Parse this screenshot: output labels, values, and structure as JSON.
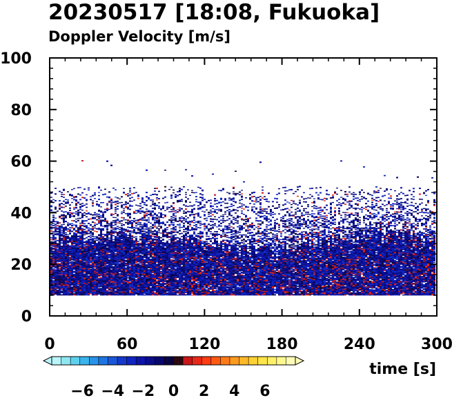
{
  "title": "20230517 [18:08, Fukuoka]",
  "subtitle": "Doppler Velocity [m/s]",
  "chart_data": {
    "type": "heatmap",
    "title": "20230517 [18:08, Fukuoka]",
    "subtitle": "Doppler Velocity [m/s]",
    "xlabel": "time [s]",
    "ylabel": "",
    "xlim": [
      0,
      300
    ],
    "ylim": [
      0,
      100
    ],
    "x_ticks": [
      0,
      60,
      120,
      180,
      240,
      300
    ],
    "x_tick_labels": [
      "0",
      "60",
      "120",
      "180",
      "240",
      "300"
    ],
    "y_ticks": [
      0,
      20,
      40,
      60,
      80,
      100
    ],
    "y_tick_labels": [
      "0",
      "20",
      "40",
      "60",
      "80",
      "100"
    ],
    "grid": false,
    "colorbar": {
      "orientation": "horizontal",
      "placement": "bottom-left",
      "range": [
        -8,
        8
      ],
      "tick_values": [
        -6,
        -4,
        -2,
        0,
        2,
        4,
        6
      ],
      "tick_labels": [
        "−6",
        "−4",
        "−2",
        "0",
        "2",
        "4",
        "6"
      ],
      "colors": [
        "#b8f4f8",
        "#8ee6f0",
        "#5fd0ec",
        "#3ab4ec",
        "#2894e8",
        "#1e74e0",
        "#1a56d8",
        "#1438cc",
        "#1024c0",
        "#0c14a8",
        "#0a0c8c",
        "#08086c",
        "#0a0440",
        "#2a0a10",
        "#c8181a",
        "#e82818",
        "#ff3c14",
        "#ff5a14",
        "#ff7a18",
        "#ff9a20",
        "#ffb828",
        "#ffd032",
        "#ffe44a",
        "#fff06a",
        "#fff890",
        "#fffcb8"
      ]
    },
    "field_description": {
      "min_height": 8,
      "dense_top": 25,
      "scattered_top": 50,
      "max_echo": 60,
      "dominant_sign": "negative",
      "velocity_range": [
        -3,
        2
      ]
    }
  }
}
